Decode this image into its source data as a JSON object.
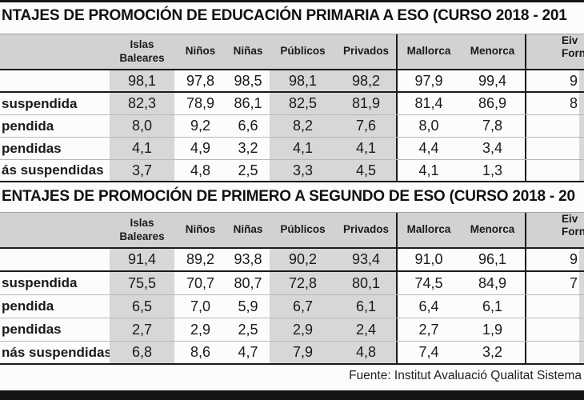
{
  "page": {
    "source_note": "Fuente: Institut Avaluació Qualitat Sistema"
  },
  "colors": {
    "rule_black": "#141414",
    "header_gray": "#d2d2d2",
    "shaded_column_gray": "#d7d7d7",
    "thin_row_line": "#b8b8b8"
  },
  "tables": [
    {
      "title": "NTAJES DE PROMOCIÓN DE EDUCACIÓN PRIMARIA A ESO (CURSO 2018 - 201",
      "columns": [
        {
          "label": "",
          "shaded": false
        },
        {
          "label": "Islas\nBaleares",
          "shaded": true
        },
        {
          "label": "Niños",
          "shaded": false
        },
        {
          "label": "Niñas",
          "shaded": false
        },
        {
          "label": "Públicos",
          "shaded": true
        },
        {
          "label": "Privados",
          "shaded": true
        },
        {
          "label": "Mallorca",
          "shaded": false
        },
        {
          "label": "Menorca",
          "shaded": false
        },
        {
          "label": "Eiv\nForn",
          "shaded": false
        }
      ],
      "rows": [
        {
          "label": "",
          "values": [
            "98,1",
            "97,8",
            "98,5",
            "98,1",
            "98,2",
            "97,9",
            "99,4",
            "9"
          ]
        },
        {
          "label": "suspendida",
          "values": [
            "82,3",
            "78,9",
            "86,1",
            "82,5",
            "81,9",
            "81,4",
            "86,9",
            "8"
          ]
        },
        {
          "label": "pendida",
          "values": [
            "8,0",
            "9,2",
            "6,6",
            "8,2",
            "7,6",
            "8,0",
            "7,8",
            ""
          ]
        },
        {
          "label": "pendidas",
          "values": [
            "4,1",
            "4,9",
            "3,2",
            "4,1",
            "4,1",
            "4,4",
            "3,4",
            ""
          ]
        },
        {
          "label": "ás suspendidas",
          "values": [
            "3,7",
            "4,8",
            "2,5",
            "3,3",
            "4,5",
            "4,1",
            "1,3",
            ""
          ]
        }
      ]
    },
    {
      "title": "ENTAJES DE PROMOCIÓN DE PRIMERO A SEGUNDO DE ESO (CURSO 2018 - 20",
      "columns": [
        {
          "label": "",
          "shaded": false
        },
        {
          "label": "Islas\nBaleares",
          "shaded": true
        },
        {
          "label": "Niños",
          "shaded": false
        },
        {
          "label": "Niñas",
          "shaded": false
        },
        {
          "label": "Públicos",
          "shaded": true
        },
        {
          "label": "Privados",
          "shaded": true
        },
        {
          "label": "Mallorca",
          "shaded": false
        },
        {
          "label": "Menorca",
          "shaded": false
        },
        {
          "label": "Eiv\nForn",
          "shaded": false
        }
      ],
      "rows": [
        {
          "label": "",
          "values": [
            "91,4",
            "89,2",
            "93,8",
            "90,2",
            "93,4",
            "91,0",
            "96,1",
            "9"
          ]
        },
        {
          "label": "suspendida",
          "values": [
            "75,5",
            "70,7",
            "80,7",
            "72,8",
            "80,1",
            "74,5",
            "84,9",
            "7"
          ]
        },
        {
          "label": "pendida",
          "values": [
            "6,5",
            "7,0",
            "5,9",
            "6,7",
            "6,1",
            "6,4",
            "6,1",
            ""
          ]
        },
        {
          "label": "pendidas",
          "values": [
            "2,7",
            "2,9",
            "2,5",
            "2,9",
            "2,4",
            "2,7",
            "1,9",
            ""
          ]
        },
        {
          "label": "nás suspendidas",
          "values": [
            "6,8",
            "8,6",
            "4,7",
            "7,9",
            "4,8",
            "7,4",
            "3,2",
            ""
          ]
        }
      ]
    }
  ]
}
